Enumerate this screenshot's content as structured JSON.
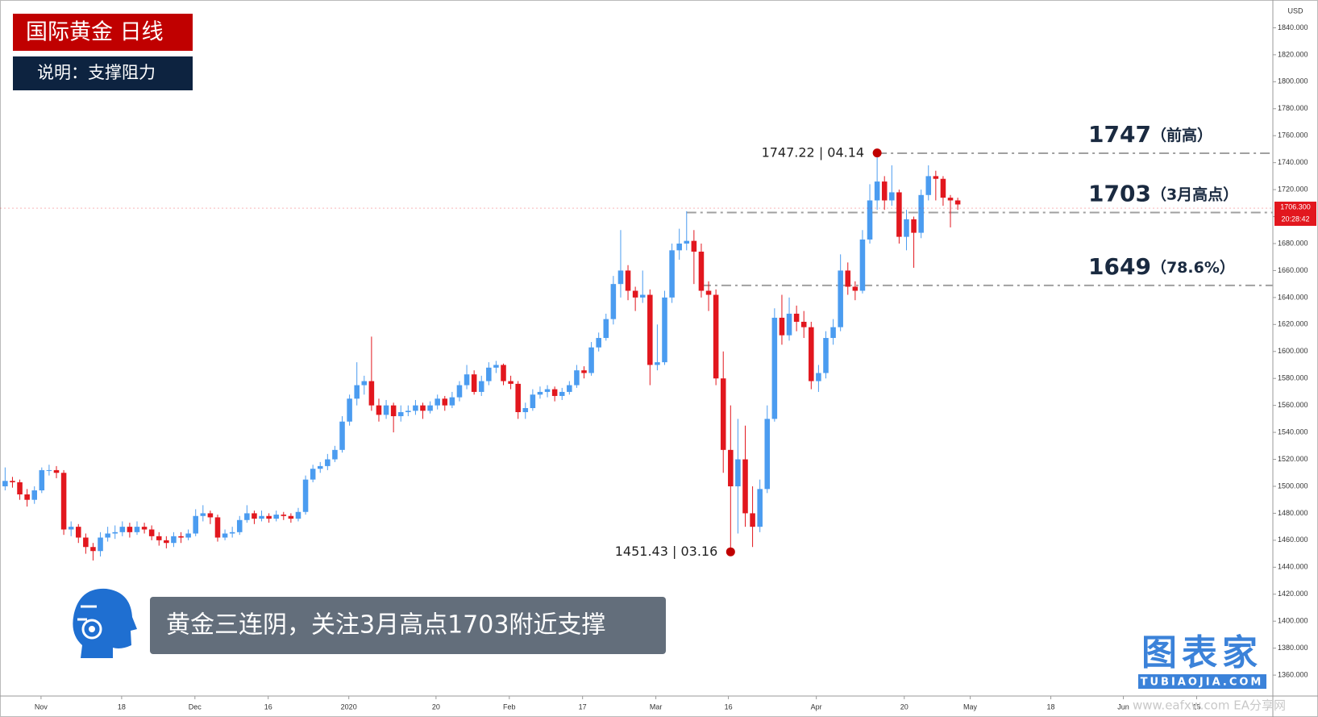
{
  "chart_data": {
    "type": "candlestick",
    "title": "国际黄金  日线",
    "subtitle": "说明：支撑阻力",
    "caption": "黄金三连阴，关注3月高点1703附近支撑",
    "y_axis_label": "USD",
    "up_color": "#4b9cf0",
    "down_color": "#e2171e",
    "grid": false,
    "xlim": [
      -0.7,
      173
    ],
    "ylim": [
      1344.5,
      1860.6
    ],
    "xticks": [
      {
        "value": 4.9,
        "label": "Nov"
      },
      {
        "value": 15.9,
        "label": "18"
      },
      {
        "value": 25.9,
        "label": "Dec"
      },
      {
        "value": 35.9,
        "label": "16"
      },
      {
        "value": 46.9,
        "label": "2020"
      },
      {
        "value": 58.8,
        "label": "20"
      },
      {
        "value": 68.8,
        "label": "Feb"
      },
      {
        "value": 78.8,
        "label": "17"
      },
      {
        "value": 88.8,
        "label": "Mar"
      },
      {
        "value": 98.7,
        "label": "16"
      },
      {
        "value": 110.7,
        "label": "Apr"
      },
      {
        "value": 122.7,
        "label": "20"
      },
      {
        "value": 131.7,
        "label": "May"
      },
      {
        "value": 142.7,
        "label": "18"
      },
      {
        "value": 152.6,
        "label": "Jun"
      },
      {
        "value": 162.6,
        "label": "15"
      }
    ],
    "yticks": [
      {
        "value": 1360,
        "label": "1360.000"
      },
      {
        "value": 1380,
        "label": "1380.000"
      },
      {
        "value": 1400,
        "label": "1400.000"
      },
      {
        "value": 1420,
        "label": "1420.000"
      },
      {
        "value": 1440,
        "label": "1440.000"
      },
      {
        "value": 1460,
        "label": "1460.000"
      },
      {
        "value": 1480,
        "label": "1480.000"
      },
      {
        "value": 1500,
        "label": "1500.000"
      },
      {
        "value": 1520,
        "label": "1520.000"
      },
      {
        "value": 1540,
        "label": "1540.000"
      },
      {
        "value": 1560,
        "label": "1560.000"
      },
      {
        "value": 1580,
        "label": "1580.000"
      },
      {
        "value": 1600,
        "label": "1600.000"
      },
      {
        "value": 1620,
        "label": "1620.000"
      },
      {
        "value": 1640,
        "label": "1640.000"
      },
      {
        "value": 1660,
        "label": "1660.000"
      },
      {
        "value": 1680,
        "label": "1680.000"
      },
      {
        "value": 1700,
        "label": "1700.000"
      },
      {
        "value": 1720,
        "label": "1720.000"
      },
      {
        "value": 1740,
        "label": "1740.000"
      },
      {
        "value": 1760,
        "label": "1760.000"
      },
      {
        "value": 1780,
        "label": "1780.000"
      },
      {
        "value": 1800,
        "label": "1800.000"
      },
      {
        "value": 1820,
        "label": "1820.000"
      },
      {
        "value": 1840,
        "label": "1840.000"
      }
    ],
    "ohlc": [
      [
        1500,
        1514,
        1497,
        1504
      ],
      [
        1504,
        1507,
        1499,
        1503
      ],
      [
        1503,
        1505,
        1490,
        1494
      ],
      [
        1494,
        1498,
        1485,
        1490
      ],
      [
        1490,
        1500,
        1487,
        1497
      ],
      [
        1497,
        1514,
        1495,
        1512
      ],
      [
        1512,
        1516,
        1508,
        1512
      ],
      [
        1512,
        1515,
        1506,
        1510
      ],
      [
        1510,
        1512,
        1464,
        1468
      ],
      [
        1468,
        1474,
        1463,
        1470
      ],
      [
        1470,
        1472,
        1458,
        1462
      ],
      [
        1462,
        1465,
        1450,
        1455
      ],
      [
        1455,
        1458,
        1445,
        1452
      ],
      [
        1452,
        1466,
        1448,
        1462
      ],
      [
        1462,
        1470,
        1459,
        1465
      ],
      [
        1465,
        1471,
        1461,
        1466
      ],
      [
        1466,
        1474,
        1463,
        1470
      ],
      [
        1470,
        1473,
        1462,
        1466
      ],
      [
        1466,
        1474,
        1464,
        1470
      ],
      [
        1470,
        1473,
        1465,
        1468
      ],
      [
        1468,
        1471,
        1460,
        1463
      ],
      [
        1463,
        1466,
        1456,
        1460
      ],
      [
        1460,
        1463,
        1454,
        1458
      ],
      [
        1458,
        1466,
        1455,
        1463
      ],
      [
        1463,
        1466,
        1458,
        1462
      ],
      [
        1462,
        1468,
        1460,
        1465
      ],
      [
        1465,
        1483,
        1463,
        1478
      ],
      [
        1478,
        1486,
        1474,
        1480
      ],
      [
        1480,
        1482,
        1472,
        1477
      ],
      [
        1477,
        1479,
        1459,
        1462
      ],
      [
        1462,
        1468,
        1460,
        1465
      ],
      [
        1465,
        1470,
        1462,
        1466
      ],
      [
        1466,
        1478,
        1464,
        1475
      ],
      [
        1475,
        1486,
        1473,
        1480
      ],
      [
        1480,
        1482,
        1472,
        1476
      ],
      [
        1476,
        1482,
        1474,
        1478
      ],
      [
        1478,
        1480,
        1473,
        1476
      ],
      [
        1476,
        1482,
        1474,
        1479
      ],
      [
        1479,
        1481,
        1475,
        1478
      ],
      [
        1478,
        1480,
        1473,
        1476
      ],
      [
        1476,
        1484,
        1474,
        1481
      ],
      [
        1481,
        1508,
        1479,
        1505
      ],
      [
        1505,
        1516,
        1503,
        1513
      ],
      [
        1513,
        1518,
        1510,
        1515
      ],
      [
        1515,
        1524,
        1512,
        1520
      ],
      [
        1520,
        1530,
        1518,
        1527
      ],
      [
        1527,
        1552,
        1525,
        1548
      ],
      [
        1548,
        1568,
        1545,
        1565
      ],
      [
        1565,
        1592,
        1560,
        1575
      ],
      [
        1575,
        1582,
        1568,
        1578
      ],
      [
        1578,
        1611,
        1556,
        1560
      ],
      [
        1560,
        1565,
        1548,
        1553
      ],
      [
        1553,
        1564,
        1550,
        1560
      ],
      [
        1560,
        1562,
        1540,
        1552
      ],
      [
        1552,
        1560,
        1548,
        1555
      ],
      [
        1555,
        1560,
        1552,
        1556
      ],
      [
        1556,
        1564,
        1553,
        1560
      ],
      [
        1560,
        1562,
        1550,
        1556
      ],
      [
        1556,
        1563,
        1554,
        1560
      ],
      [
        1560,
        1568,
        1557,
        1565
      ],
      [
        1565,
        1567,
        1556,
        1560
      ],
      [
        1560,
        1570,
        1558,
        1566
      ],
      [
        1566,
        1578,
        1563,
        1575
      ],
      [
        1575,
        1590,
        1572,
        1583
      ],
      [
        1583,
        1586,
        1568,
        1570
      ],
      [
        1570,
        1582,
        1567,
        1578
      ],
      [
        1578,
        1592,
        1575,
        1588
      ],
      [
        1588,
        1593,
        1584,
        1590
      ],
      [
        1590,
        1591,
        1575,
        1578
      ],
      [
        1578,
        1582,
        1572,
        1576
      ],
      [
        1576,
        1578,
        1550,
        1555
      ],
      [
        1555,
        1562,
        1550,
        1558
      ],
      [
        1558,
        1572,
        1556,
        1568
      ],
      [
        1568,
        1574,
        1565,
        1570
      ],
      [
        1570,
        1575,
        1566,
        1572
      ],
      [
        1572,
        1574,
        1563,
        1567
      ],
      [
        1567,
        1573,
        1564,
        1570
      ],
      [
        1570,
        1578,
        1568,
        1575
      ],
      [
        1575,
        1590,
        1573,
        1586
      ],
      [
        1586,
        1589,
        1580,
        1584
      ],
      [
        1584,
        1607,
        1582,
        1603
      ],
      [
        1603,
        1614,
        1600,
        1610
      ],
      [
        1610,
        1628,
        1608,
        1624
      ],
      [
        1624,
        1656,
        1620,
        1650
      ],
      [
        1650,
        1690,
        1640,
        1660
      ],
      [
        1660,
        1664,
        1638,
        1645
      ],
      [
        1645,
        1648,
        1630,
        1640
      ],
      [
        1640,
        1660,
        1636,
        1642
      ],
      [
        1642,
        1646,
        1575,
        1590
      ],
      [
        1590,
        1620,
        1586,
        1592
      ],
      [
        1592,
        1645,
        1590,
        1640
      ],
      [
        1640,
        1680,
        1636,
        1675
      ],
      [
        1675,
        1691,
        1668,
        1680
      ],
      [
        1680,
        1704,
        1675,
        1682
      ],
      [
        1682,
        1690,
        1650,
        1674
      ],
      [
        1674,
        1680,
        1640,
        1645
      ],
      [
        1645,
        1652,
        1630,
        1642
      ],
      [
        1642,
        1646,
        1575,
        1580
      ],
      [
        1580,
        1600,
        1510,
        1527
      ],
      [
        1527,
        1560,
        1451.43,
        1500
      ],
      [
        1500,
        1550,
        1465,
        1520
      ],
      [
        1520,
        1545,
        1470,
        1480
      ],
      [
        1480,
        1500,
        1455,
        1470
      ],
      [
        1470,
        1505,
        1466,
        1498
      ],
      [
        1498,
        1560,
        1495,
        1550
      ],
      [
        1550,
        1632,
        1548,
        1625
      ],
      [
        1625,
        1642,
        1605,
        1612
      ],
      [
        1612,
        1640,
        1608,
        1628
      ],
      [
        1628,
        1634,
        1615,
        1622
      ],
      [
        1622,
        1630,
        1610,
        1618
      ],
      [
        1618,
        1622,
        1572,
        1578
      ],
      [
        1578,
        1590,
        1570,
        1584
      ],
      [
        1584,
        1615,
        1580,
        1610
      ],
      [
        1610,
        1624,
        1605,
        1618
      ],
      [
        1618,
        1672,
        1615,
        1660
      ],
      [
        1660,
        1666,
        1642,
        1648
      ],
      [
        1648,
        1652,
        1638,
        1645
      ],
      [
        1645,
        1690,
        1643,
        1683
      ],
      [
        1683,
        1724,
        1680,
        1712
      ],
      [
        1712,
        1747.22,
        1705,
        1726
      ],
      [
        1726,
        1730,
        1705,
        1712
      ],
      [
        1712,
        1738,
        1708,
        1718
      ],
      [
        1718,
        1720,
        1680,
        1685
      ],
      [
        1685,
        1705,
        1675,
        1698
      ],
      [
        1698,
        1700,
        1662,
        1688
      ],
      [
        1688,
        1720,
        1684,
        1716
      ],
      [
        1716,
        1738,
        1712,
        1730
      ],
      [
        1730,
        1734,
        1712,
        1728
      ],
      [
        1728,
        1730,
        1708,
        1714
      ],
      [
        1714,
        1716,
        1692,
        1712
      ],
      [
        1712,
        1714,
        1705,
        1709
      ]
    ],
    "levels": [
      {
        "value": 1747,
        "label": "1747",
        "note": "（前高）",
        "from": 119
      },
      {
        "value": 1703,
        "label": "1703",
        "note": "（3月高点）",
        "from": 93
      },
      {
        "value": 1649,
        "label": "1649",
        "note": "（78.6%）",
        "from": 95
      }
    ],
    "points": [
      {
        "x": 119,
        "y": 1747.22,
        "date": "04.14"
      },
      {
        "x": 99,
        "y": 1451.43,
        "date": "03.16"
      }
    ],
    "last_price": {
      "value": 1706.3,
      "label": "1706.300",
      "time": "20:28:42"
    },
    "watermark": {
      "name": "图表家",
      "url": "TUBIAOJIA.COM",
      "site": "www.eafxw.com   EA分享网"
    }
  }
}
